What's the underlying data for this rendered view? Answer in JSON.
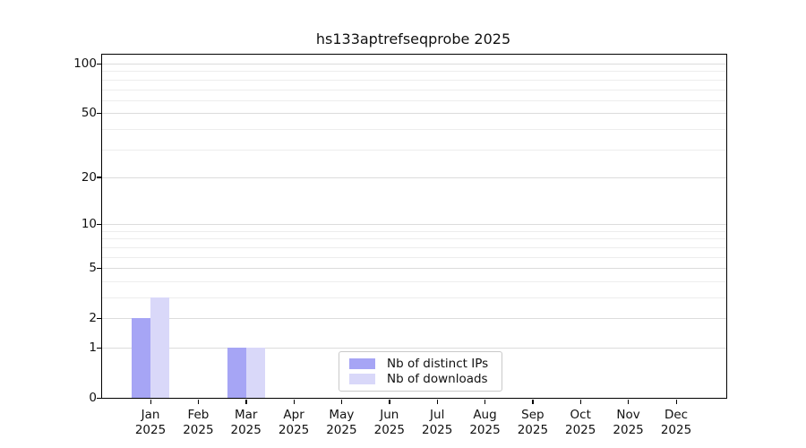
{
  "chart_data": {
    "type": "bar",
    "title": "hs133aptrefseqprobe 2025",
    "categories": [
      "Jan",
      "Feb",
      "Mar",
      "Apr",
      "May",
      "Jun",
      "Jul",
      "Aug",
      "Sep",
      "Oct",
      "Nov",
      "Dec"
    ],
    "category_sublabel": "2025",
    "series": [
      {
        "name": "Nb of distinct IPs",
        "color": "#a6a5f5",
        "values": [
          2,
          0,
          1,
          0,
          0,
          0,
          0,
          0,
          0,
          0,
          0,
          0
        ]
      },
      {
        "name": "Nb of downloads",
        "color": "#d9d8f9",
        "values": [
          3,
          0,
          1,
          0,
          0,
          0,
          0,
          0,
          0,
          0,
          0,
          0
        ]
      }
    ],
    "y_scale": "log1p",
    "ylim": [
      0,
      113
    ],
    "y_tick_labels": [
      "100",
      "50",
      "20",
      "10",
      "5",
      "2",
      "1",
      "0"
    ],
    "y_tick_values": [
      100,
      50,
      20,
      10,
      5,
      2,
      1,
      0
    ],
    "y_gridline_values": [
      1,
      2,
      3,
      4,
      5,
      6,
      7,
      8,
      9,
      10,
      20,
      30,
      40,
      50,
      60,
      70,
      80,
      90,
      100
    ],
    "grid": true,
    "legend_position": "lower center"
  },
  "style": {
    "grid_major_color": "#dcdcdc",
    "grid_minor_color": "#ededed",
    "spine_color": "#000000",
    "background_color": "#ffffff"
  }
}
